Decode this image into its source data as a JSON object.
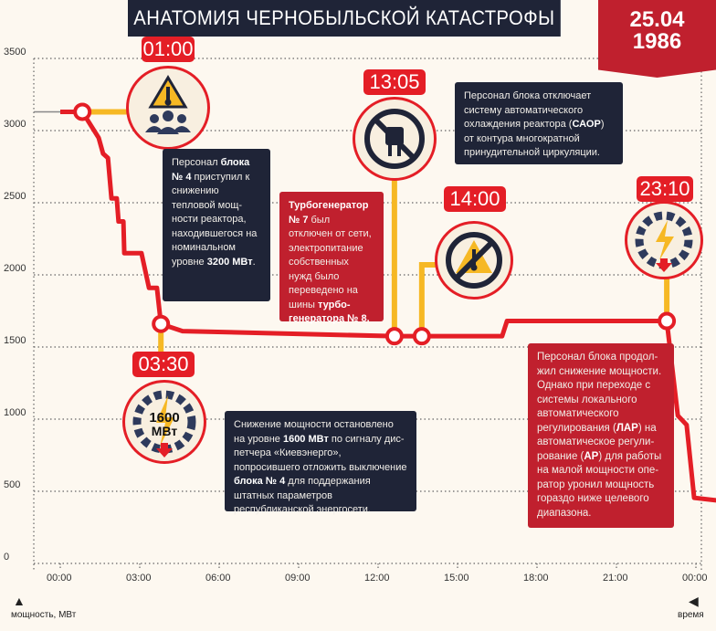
{
  "header": {
    "title": "АНАТОМИЯ ЧЕРНОБЫЛЬСКОЙ КАТАСТРОФЫ",
    "date_line1": "25.04",
    "date_line2": "1986"
  },
  "colors": {
    "line": "#e41e26",
    "connector": "#f6b824",
    "dark_box": "#1f2437",
    "red_box": "#c0202e",
    "background": "#fdf8f0"
  },
  "chart_data": {
    "type": "line",
    "xlabel": "время",
    "ylabel": "мощность, МВт",
    "ylim": [
      0,
      3500
    ],
    "yticks": [
      "0",
      "500",
      "1000",
      "1500",
      "2000",
      "2500",
      "3000",
      "3500"
    ],
    "xticks": [
      "00:00",
      "03:00",
      "06:00",
      "09:00",
      "12:00",
      "15:00",
      "18:00",
      "21:00",
      "00:00"
    ],
    "grid": true,
    "series": [
      {
        "points": [
          [
            "00:00",
            3130
          ],
          [
            "00:50",
            3130
          ],
          [
            "01:27",
            2950
          ],
          [
            "01:37",
            2840
          ],
          [
            "01:48",
            2810
          ],
          [
            "01:56",
            2530
          ],
          [
            "02:08",
            2530
          ],
          [
            "02:12",
            2370
          ],
          [
            "02:23",
            2370
          ],
          [
            "02:25",
            2150
          ],
          [
            "03:04",
            2150
          ],
          [
            "03:21",
            1910
          ],
          [
            "03:39",
            1910
          ],
          [
            "03:48",
            1660
          ],
          [
            "04:37",
            1610
          ],
          [
            "12:37",
            1575
          ],
          [
            "13:39",
            1575
          ],
          [
            "16:41",
            1575
          ],
          [
            "16:52",
            1680
          ],
          [
            "22:54",
            1680
          ],
          [
            "23:19",
            1025
          ],
          [
            "23:39",
            960
          ],
          [
            "23:56",
            455
          ],
          [
            "00:46",
            437
          ]
        ]
      }
    ],
    "events": [
      {
        "time": "01:00",
        "marker": "00:50",
        "value": 3130,
        "icon": "warning-thermometer-people-icon",
        "text_html": "Персонал <b>блока № 4</b> приступил к снижению тепловой мощ­ности реактора, находившегося на номиналь­ном уровне <b>3200 МВт</b>."
      },
      {
        "time": "03:30",
        "marker": "03:48",
        "value": 1660,
        "icon": "gear-lightning-icon",
        "icon_text1": "1600",
        "icon_text2": "МВт",
        "text_html": "Снижение мощности остановлено на уровне <b>1600 МВт</b> по сигналу дис­петчера «Киевэнерго», попросившего отложить выключение <b>блока № 4</b> для поддержания штатных параме­тров республиканской энергосети."
      },
      {
        "time": "13:05",
        "marker": "12:37",
        "value": 1575,
        "icon": "unplugged-icon",
        "text_html": "<b>Турбогенератор № 7</b> был отключен от сети, электропитание собственных нужд было переведено на шины <b>турбо­генератора № 8.</b>"
      },
      {
        "time": "14:00",
        "marker": "13:39",
        "value": 1575,
        "icon": "no-cooling-icon",
        "text_html": "Персонал блока отключает систему автоматического охлаждения реактора (<b>САОР</b>) от контура многократной принудительной циркуляции."
      },
      {
        "time": "23:10",
        "marker": "22:54",
        "value": 1680,
        "icon": "gear-lightning-down-icon",
        "text_html": "Персонал блока продол­жил снижение мощности. Однако при переходе с системы локально­го автоматического регулирования (<b>ЛАР</b>) на автоматическое регули­рование (<b>АР</b>) для работы на малой мощности опе­ратор уронил мощность гораздо ниже целевого диапазона."
      }
    ]
  }
}
